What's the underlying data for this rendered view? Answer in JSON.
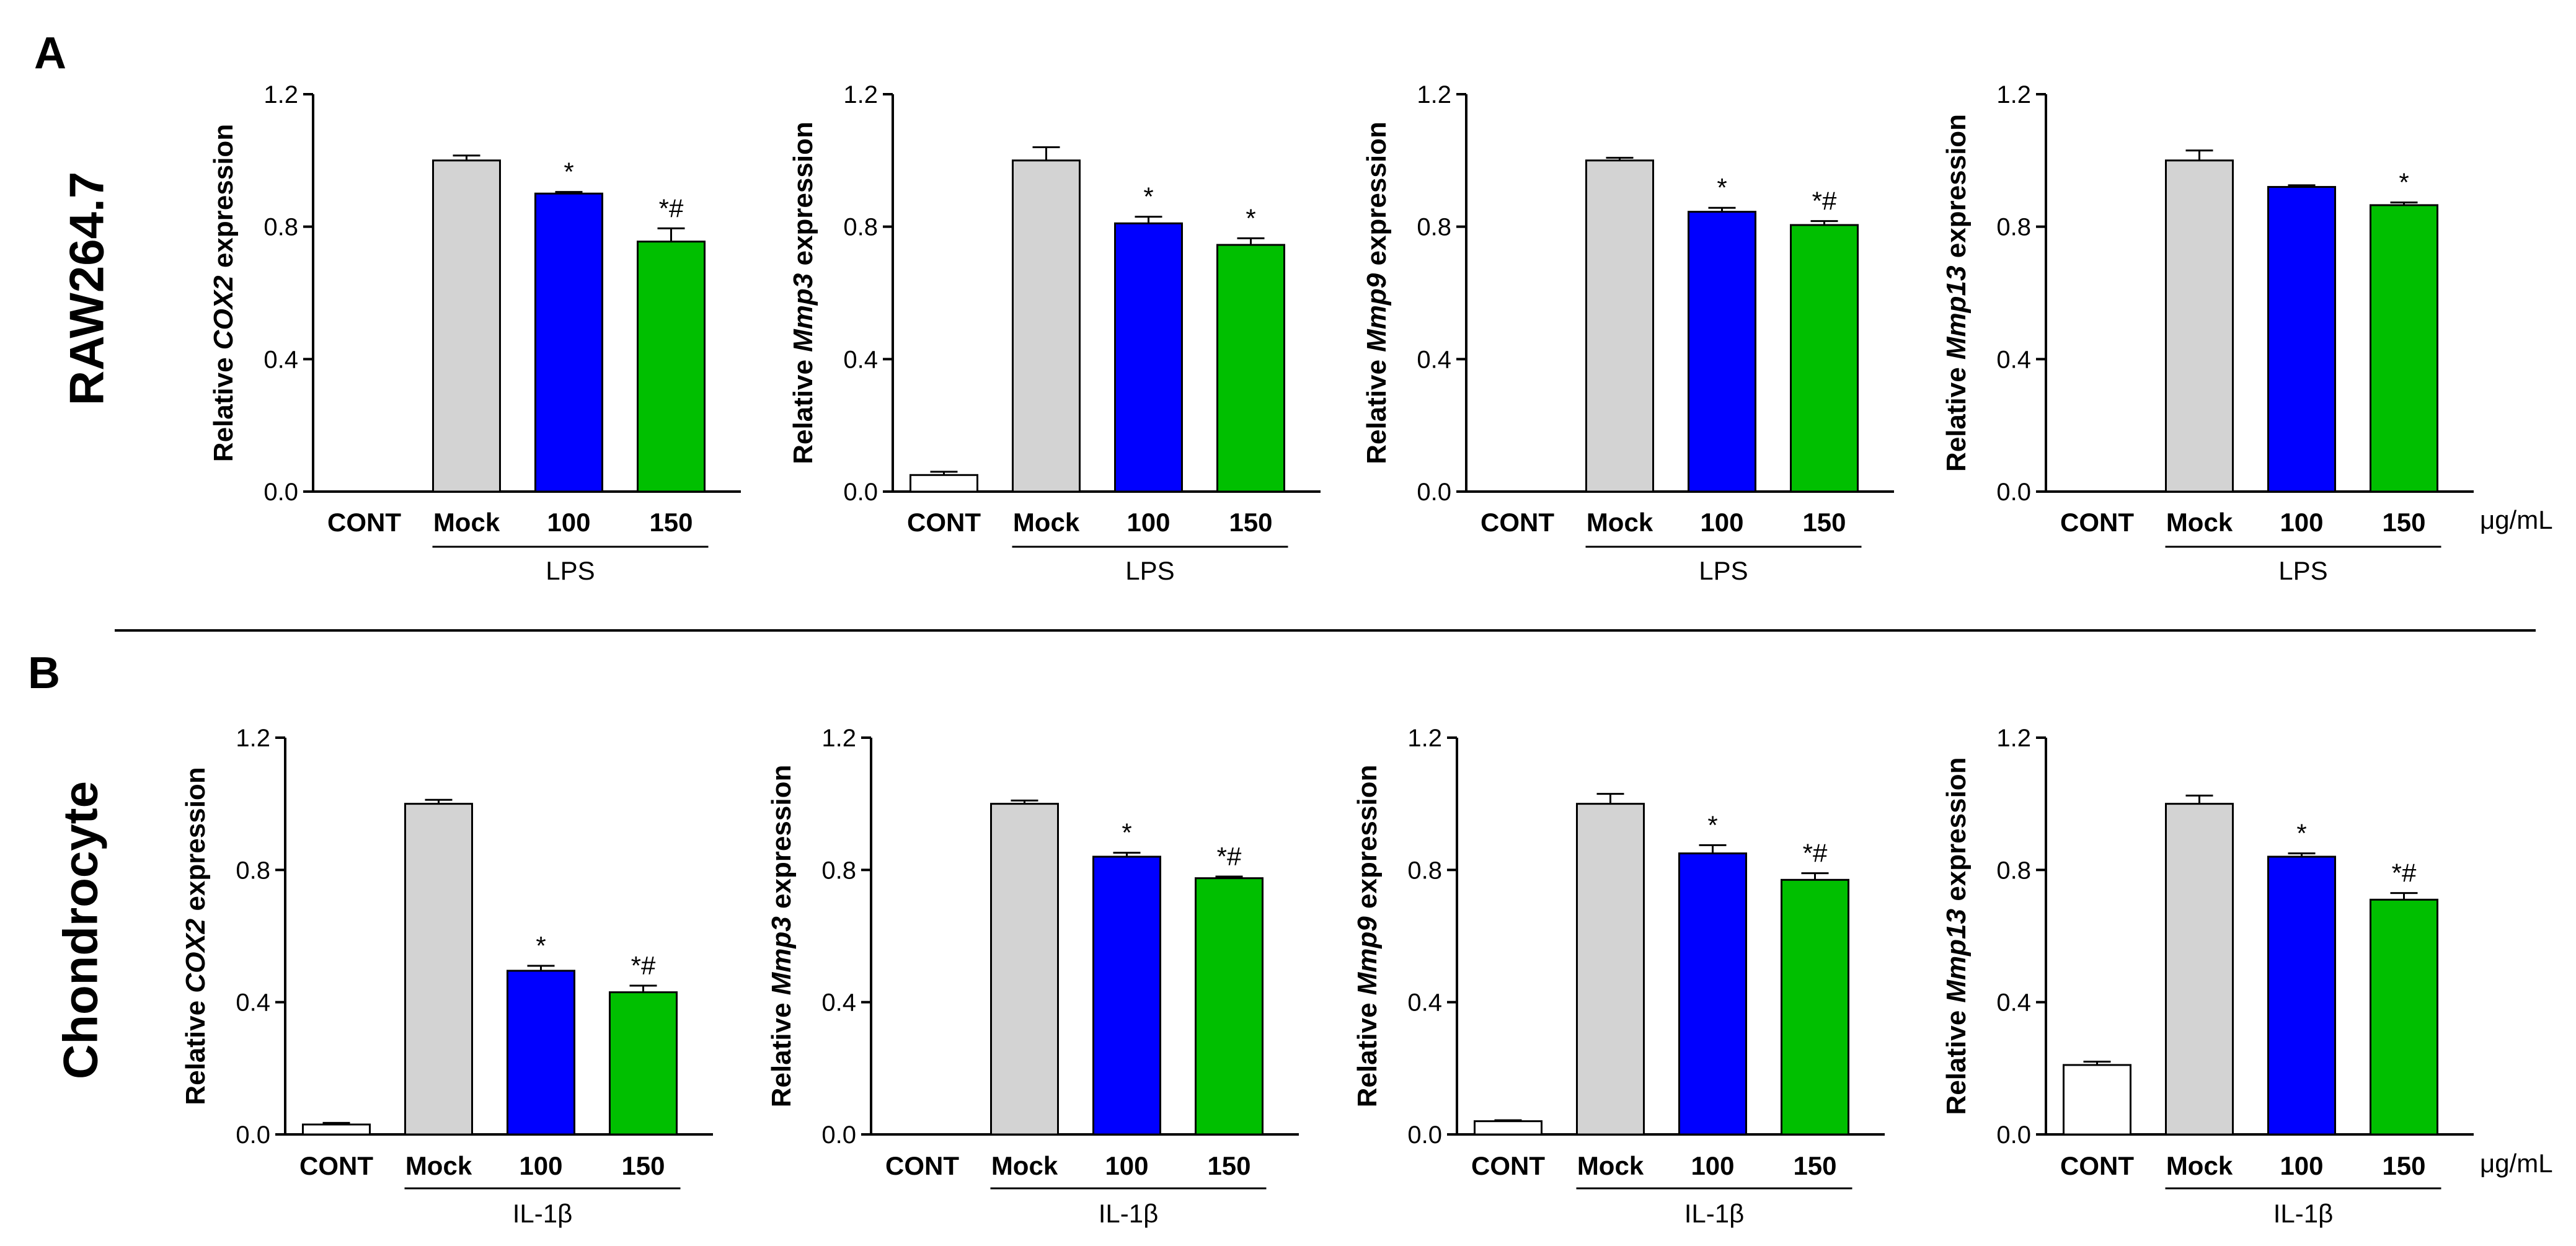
{
  "panels": [
    {
      "letter": "A",
      "row_label": "RAW264.7"
    },
    {
      "letter": "B",
      "row_label": "Chondrocyte"
    }
  ],
  "colors": {
    "CONT": "#ffffff",
    "Mock": "#d3d3d3",
    "100": "#0000ff",
    "150": "#00bf00"
  },
  "chart_data": [
    {
      "type": "bar",
      "row": 0,
      "col": 0,
      "ylabel_pre": "Relative ",
      "ylabel_gene": "COX2",
      "ylabel_post": " expression",
      "categories": [
        "CONT",
        "Mock",
        "100",
        "150"
      ],
      "values": [
        0,
        1.0,
        0.9,
        0.755
      ],
      "errors": [
        0,
        0.015,
        0.005,
        0.04
      ],
      "annotations": [
        "",
        "",
        "*",
        "*#"
      ],
      "group_label": "LPS",
      "unit": "",
      "ylim": [
        0,
        1.2
      ],
      "yticks": [
        "0.0",
        "0.4",
        "0.8",
        "1.2"
      ]
    },
    {
      "type": "bar",
      "row": 0,
      "col": 1,
      "ylabel_pre": "Relative ",
      "ylabel_gene": "Mmp3",
      "ylabel_post": " expression",
      "categories": [
        "CONT",
        "Mock",
        "100",
        "150"
      ],
      "values": [
        0.05,
        1.0,
        0.81,
        0.745
      ],
      "errors": [
        0.01,
        0.04,
        0.02,
        0.02
      ],
      "annotations": [
        "",
        "",
        "*",
        "*"
      ],
      "group_label": "LPS",
      "unit": "",
      "ylim": [
        0,
        1.2
      ],
      "yticks": [
        "0.0",
        "0.4",
        "0.8",
        "1.2"
      ]
    },
    {
      "type": "bar",
      "row": 0,
      "col": 2,
      "ylabel_pre": "Relative ",
      "ylabel_gene": "Mmp9",
      "ylabel_post": " expression",
      "categories": [
        "CONT",
        "Mock",
        "100",
        "150"
      ],
      "values": [
        0,
        1.0,
        0.845,
        0.805
      ],
      "errors": [
        0,
        0.008,
        0.012,
        0.012
      ],
      "annotations": [
        "",
        "",
        "*",
        "*#"
      ],
      "group_label": "LPS",
      "unit": "",
      "ylim": [
        0,
        1.2
      ],
      "yticks": [
        "0.0",
        "0.4",
        "0.8",
        "1.2"
      ]
    },
    {
      "type": "bar",
      "row": 0,
      "col": 3,
      "ylabel_pre": "Relative ",
      "ylabel_gene": "Mmp13",
      "ylabel_post": " expression",
      "categories": [
        "CONT",
        "Mock",
        "100",
        "150"
      ],
      "values": [
        0,
        1.0,
        0.92,
        0.865
      ],
      "errors": [
        0,
        0.03,
        0.005,
        0.008
      ],
      "annotations": [
        "",
        "",
        "",
        "*"
      ],
      "group_label": "LPS",
      "unit": "μg/mL",
      "ylim": [
        0,
        1.2
      ],
      "yticks": [
        "0.0",
        "0.4",
        "0.8",
        "1.2"
      ]
    },
    {
      "type": "bar",
      "row": 1,
      "col": 0,
      "ylabel_pre": "Relative ",
      "ylabel_gene": "COX2",
      "ylabel_post": " expression",
      "categories": [
        "CONT",
        "Mock",
        "100",
        "150"
      ],
      "values": [
        0.03,
        1.0,
        0.495,
        0.43
      ],
      "errors": [
        0.005,
        0.012,
        0.015,
        0.02
      ],
      "annotations": [
        "",
        "",
        "*",
        "*#"
      ],
      "group_label": "IL-1β",
      "unit": "",
      "ylim": [
        0,
        1.2
      ],
      "yticks": [
        "0.0",
        "0.4",
        "0.8",
        "1.2"
      ]
    },
    {
      "type": "bar",
      "row": 1,
      "col": 1,
      "ylabel_pre": "Relative ",
      "ylabel_gene": "Mmp3",
      "ylabel_post": " expression",
      "categories": [
        "CONT",
        "Mock",
        "100",
        "150"
      ],
      "values": [
        0,
        1.0,
        0.84,
        0.775
      ],
      "errors": [
        0,
        0.01,
        0.012,
        0.005
      ],
      "annotations": [
        "",
        "",
        "*",
        "*#"
      ],
      "group_label": "IL-1β",
      "unit": "",
      "ylim": [
        0,
        1.2
      ],
      "yticks": [
        "0.0",
        "0.4",
        "0.8",
        "1.2"
      ]
    },
    {
      "type": "bar",
      "row": 1,
      "col": 2,
      "ylabel_pre": "Relative ",
      "ylabel_gene": "Mmp9",
      "ylabel_post": " expression",
      "categories": [
        "CONT",
        "Mock",
        "100",
        "150"
      ],
      "values": [
        0.04,
        1.0,
        0.85,
        0.77
      ],
      "errors": [
        0.003,
        0.03,
        0.025,
        0.02
      ],
      "annotations": [
        "",
        "",
        "*",
        "*#"
      ],
      "group_label": "IL-1β",
      "unit": "",
      "ylim": [
        0,
        1.2
      ],
      "yticks": [
        "0.0",
        "0.4",
        "0.8",
        "1.2"
      ]
    },
    {
      "type": "bar",
      "row": 1,
      "col": 3,
      "ylabel_pre": "Relative ",
      "ylabel_gene": "Mmp13",
      "ylabel_post": " expression",
      "categories": [
        "CONT",
        "Mock",
        "100",
        "150"
      ],
      "values": [
        0.21,
        1.0,
        0.84,
        0.71
      ],
      "errors": [
        0.01,
        0.025,
        0.01,
        0.02
      ],
      "annotations": [
        "",
        "",
        "*",
        "*#"
      ],
      "group_label": "IL-1β",
      "unit": "μg/mL",
      "ylim": [
        0,
        1.2
      ],
      "yticks": [
        "0.0",
        "0.4",
        "0.8",
        "1.2"
      ]
    }
  ]
}
